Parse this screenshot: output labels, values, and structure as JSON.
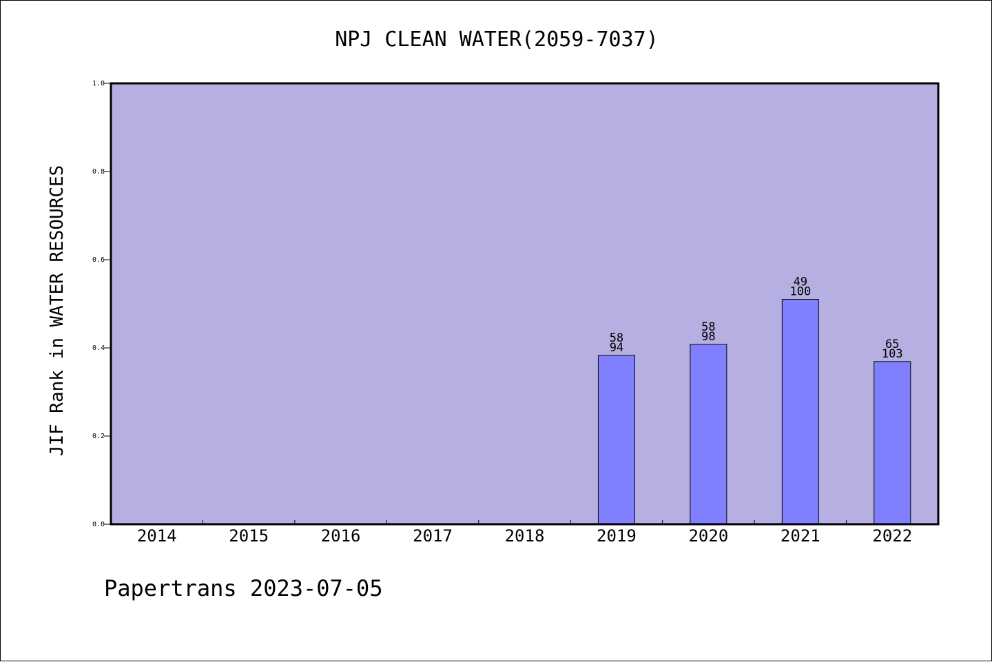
{
  "chart_data": {
    "type": "bar",
    "title": "NPJ CLEAN WATER(2059-7037)",
    "ylabel": "JIF Rank in WATER RESOURCES",
    "xlabel": "",
    "ylim": [
      0,
      1.0
    ],
    "yticks": [
      "0.0",
      "0.2",
      "0.4",
      "0.6",
      "0.8",
      "1.0"
    ],
    "categories": [
      "2014",
      "2015",
      "2016",
      "2017",
      "2018",
      "2019",
      "2020",
      "2021",
      "2022"
    ],
    "values": [
      null,
      null,
      null,
      null,
      null,
      0.383,
      0.408,
      0.51,
      0.369
    ],
    "rank_labels": [
      "",
      "",
      "",
      "",
      "",
      "58",
      "58",
      "49",
      "65"
    ],
    "total_labels": [
      "",
      "",
      "",
      "",
      "",
      "94",
      "98",
      "100",
      "103"
    ],
    "grid": false,
    "legend": "none",
    "colors": {
      "plot_background": "#b6b0e2",
      "bar_fill": "#8080ff",
      "bar_stroke": "#000000",
      "axis": "#000000"
    }
  },
  "footer": "Papertrans 2023-07-05"
}
